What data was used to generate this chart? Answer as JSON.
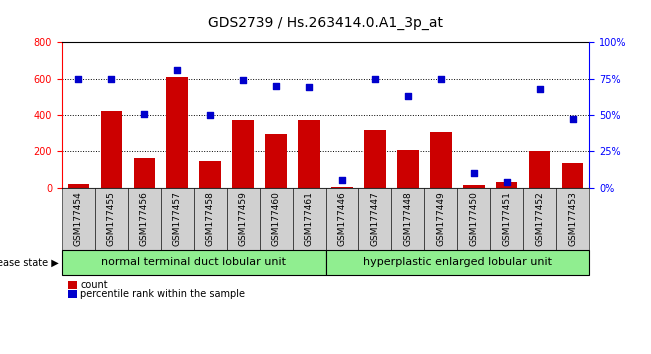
{
  "title": "GDS2739 / Hs.263414.0.A1_3p_at",
  "samples": [
    "GSM177454",
    "GSM177455",
    "GSM177456",
    "GSM177457",
    "GSM177458",
    "GSM177459",
    "GSM177460",
    "GSM177461",
    "GSM177446",
    "GSM177447",
    "GSM177448",
    "GSM177449",
    "GSM177450",
    "GSM177451",
    "GSM177452",
    "GSM177453"
  ],
  "counts": [
    20,
    420,
    165,
    610,
    145,
    370,
    295,
    375,
    5,
    315,
    210,
    305,
    15,
    30,
    200,
    135
  ],
  "percentiles": [
    75,
    75,
    51,
    81,
    50,
    74,
    70,
    69,
    5,
    75,
    63,
    75,
    10,
    4,
    68,
    47
  ],
  "group1_label": "normal terminal duct lobular unit",
  "group2_label": "hyperplastic enlarged lobular unit",
  "group1_count": 8,
  "group2_count": 8,
  "bar_color": "#cc0000",
  "dot_color": "#0000cc",
  "ylim_left": [
    0,
    800
  ],
  "ylim_right": [
    0,
    100
  ],
  "yticks_left": [
    0,
    200,
    400,
    600,
    800
  ],
  "yticks_right": [
    0,
    25,
    50,
    75,
    100
  ],
  "yticklabels_right": [
    "0%",
    "25%",
    "50%",
    "75%",
    "100%"
  ],
  "bg_color": "#ffffff",
  "group_color": "#90ee90",
  "disease_state_label": "disease state",
  "legend_count_label": "count",
  "legend_pct_label": "percentile rank within the sample",
  "title_fontsize": 10,
  "tick_fontsize": 7,
  "label_fontsize": 8,
  "xticklabel_bg": "#d0d0d0",
  "grid_dotted_ticks": [
    200,
    400,
    600
  ]
}
